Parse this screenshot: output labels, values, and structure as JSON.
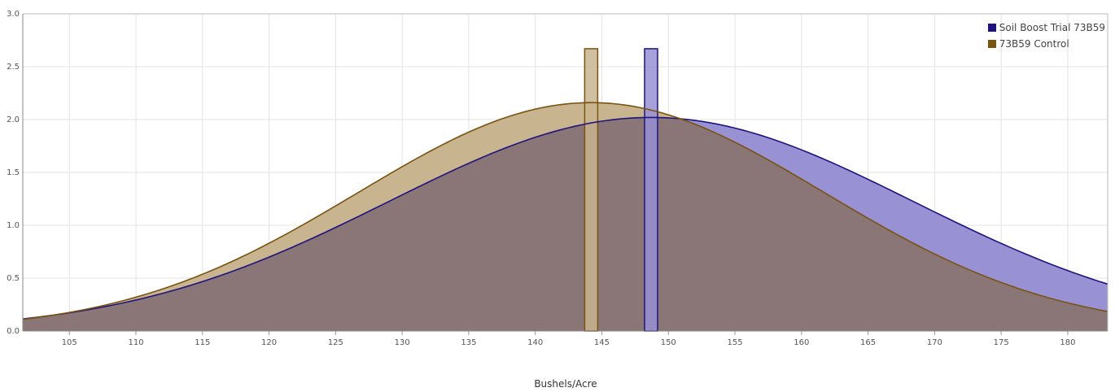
{
  "chart_data": {
    "type": "area",
    "xlabel": "Bushels/Acre",
    "ylabel": "",
    "xlim": [
      101.5,
      183
    ],
    "ylim": [
      0,
      3.0
    ],
    "xticks": [
      105,
      110,
      115,
      120,
      125,
      130,
      135,
      140,
      145,
      150,
      155,
      160,
      165,
      170,
      175,
      180
    ],
    "yticks": [
      "0.0",
      "0.5",
      "1.0",
      "1.5",
      "2.0",
      "2.5",
      "3.0"
    ],
    "grid": true,
    "legend_position": "top-right",
    "series": [
      {
        "name": "Soil Boost Trial 73B59",
        "mean": 148.7,
        "peak": 2.02,
        "sd": 19.7,
        "marker_value": 2.67,
        "fill": "#9891d3",
        "line": "#1e137f"
      },
      {
        "name": "73B59 Control",
        "mean": 144.2,
        "peak": 2.16,
        "sd": 17.5,
        "marker_value": 2.67,
        "fill": "#c8b48f",
        "line": "#7a5310"
      }
    ],
    "overlap_fill": "#8a7676"
  }
}
